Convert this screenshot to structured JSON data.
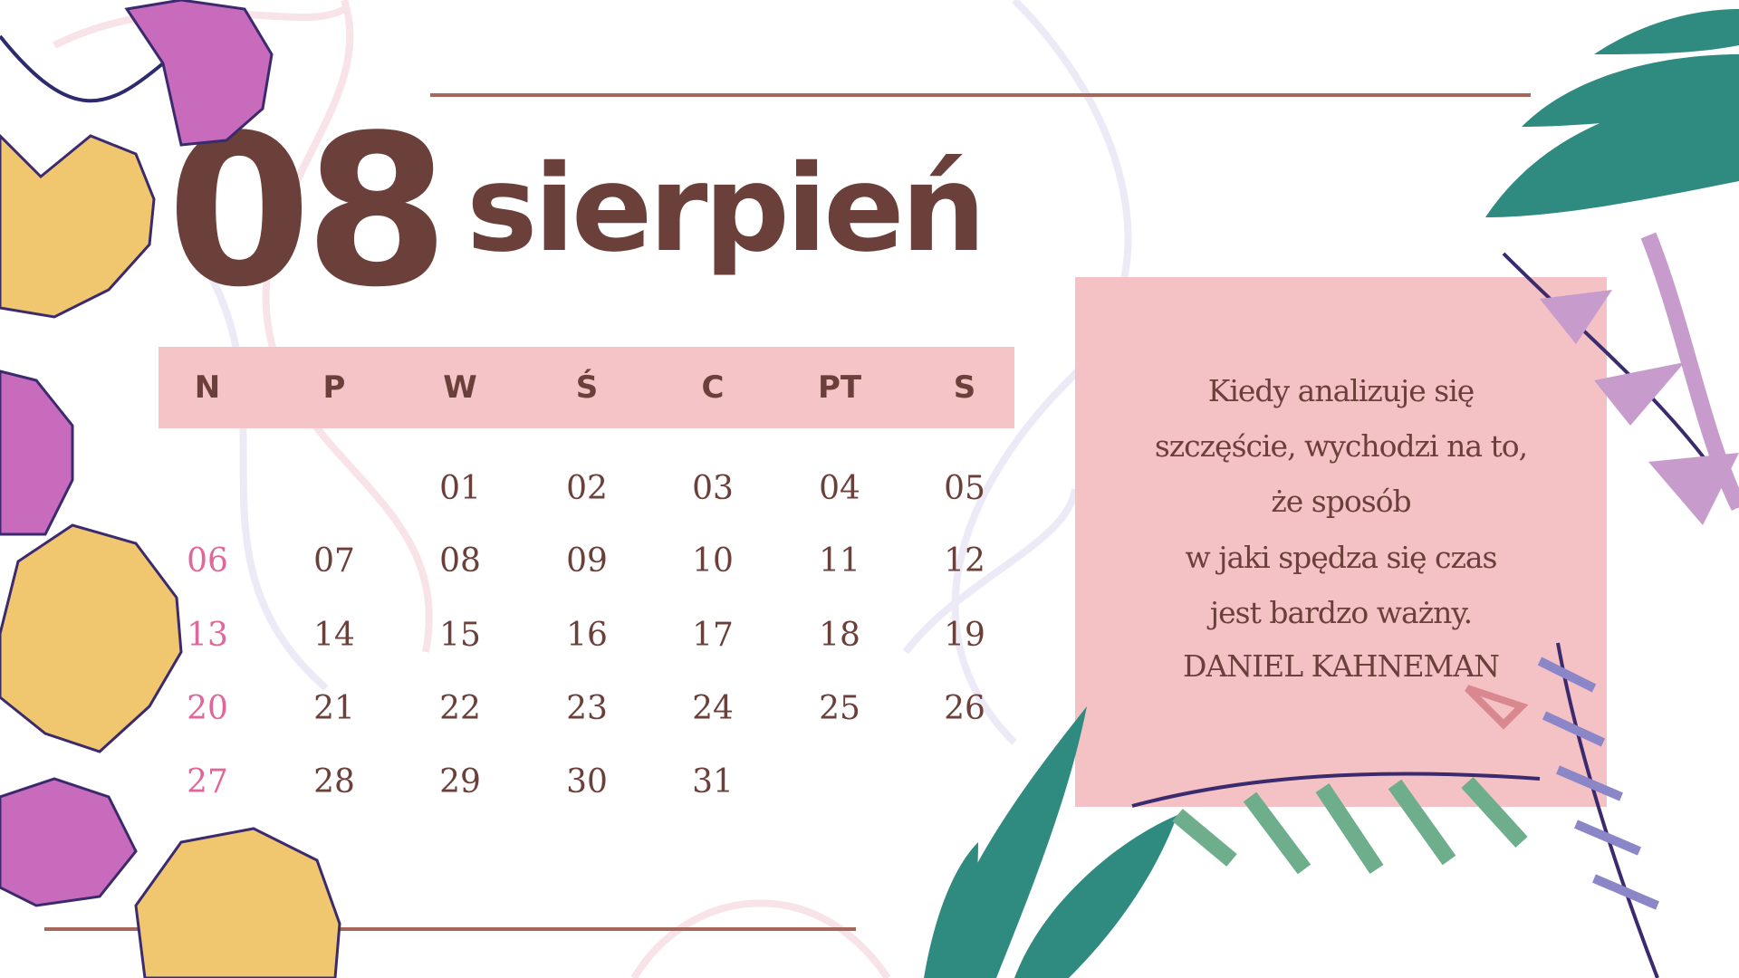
{
  "header": {
    "month_number": "08",
    "month_name": "sierpień"
  },
  "weekdays": [
    "N",
    "P",
    "W",
    "Ś",
    "C",
    "PT",
    "S"
  ],
  "weeks": [
    [
      "",
      "",
      "01",
      "02",
      "03",
      "04",
      "05"
    ],
    [
      "06",
      "07",
      "08",
      "09",
      "10",
      "11",
      "12"
    ],
    [
      "13",
      "14",
      "15",
      "16",
      "17",
      "18",
      "19"
    ],
    [
      "20",
      "21",
      "22",
      "23",
      "24",
      "25",
      "26"
    ],
    [
      "27",
      "28",
      "29",
      "30",
      "31",
      "",
      ""
    ]
  ],
  "quote": {
    "lines": [
      "Kiedy analizuje się",
      "szczęście, wychodzi na to,",
      "że sposób",
      "w jaki spędza się czas",
      "jest bardzo ważny."
    ],
    "author": "DANIEL KAHNEMAN"
  },
  "colors": {
    "text": "#6b3f3a",
    "sunday": "#e0679a",
    "header_bar": "#f5c4c7",
    "quote_box": "#f4c2c5",
    "rule": "#a5675a"
  },
  "decorations": [
    "palm-leaf-icon",
    "fan-flower-icon",
    "spotted-leaf-icon",
    "fern-icon"
  ]
}
